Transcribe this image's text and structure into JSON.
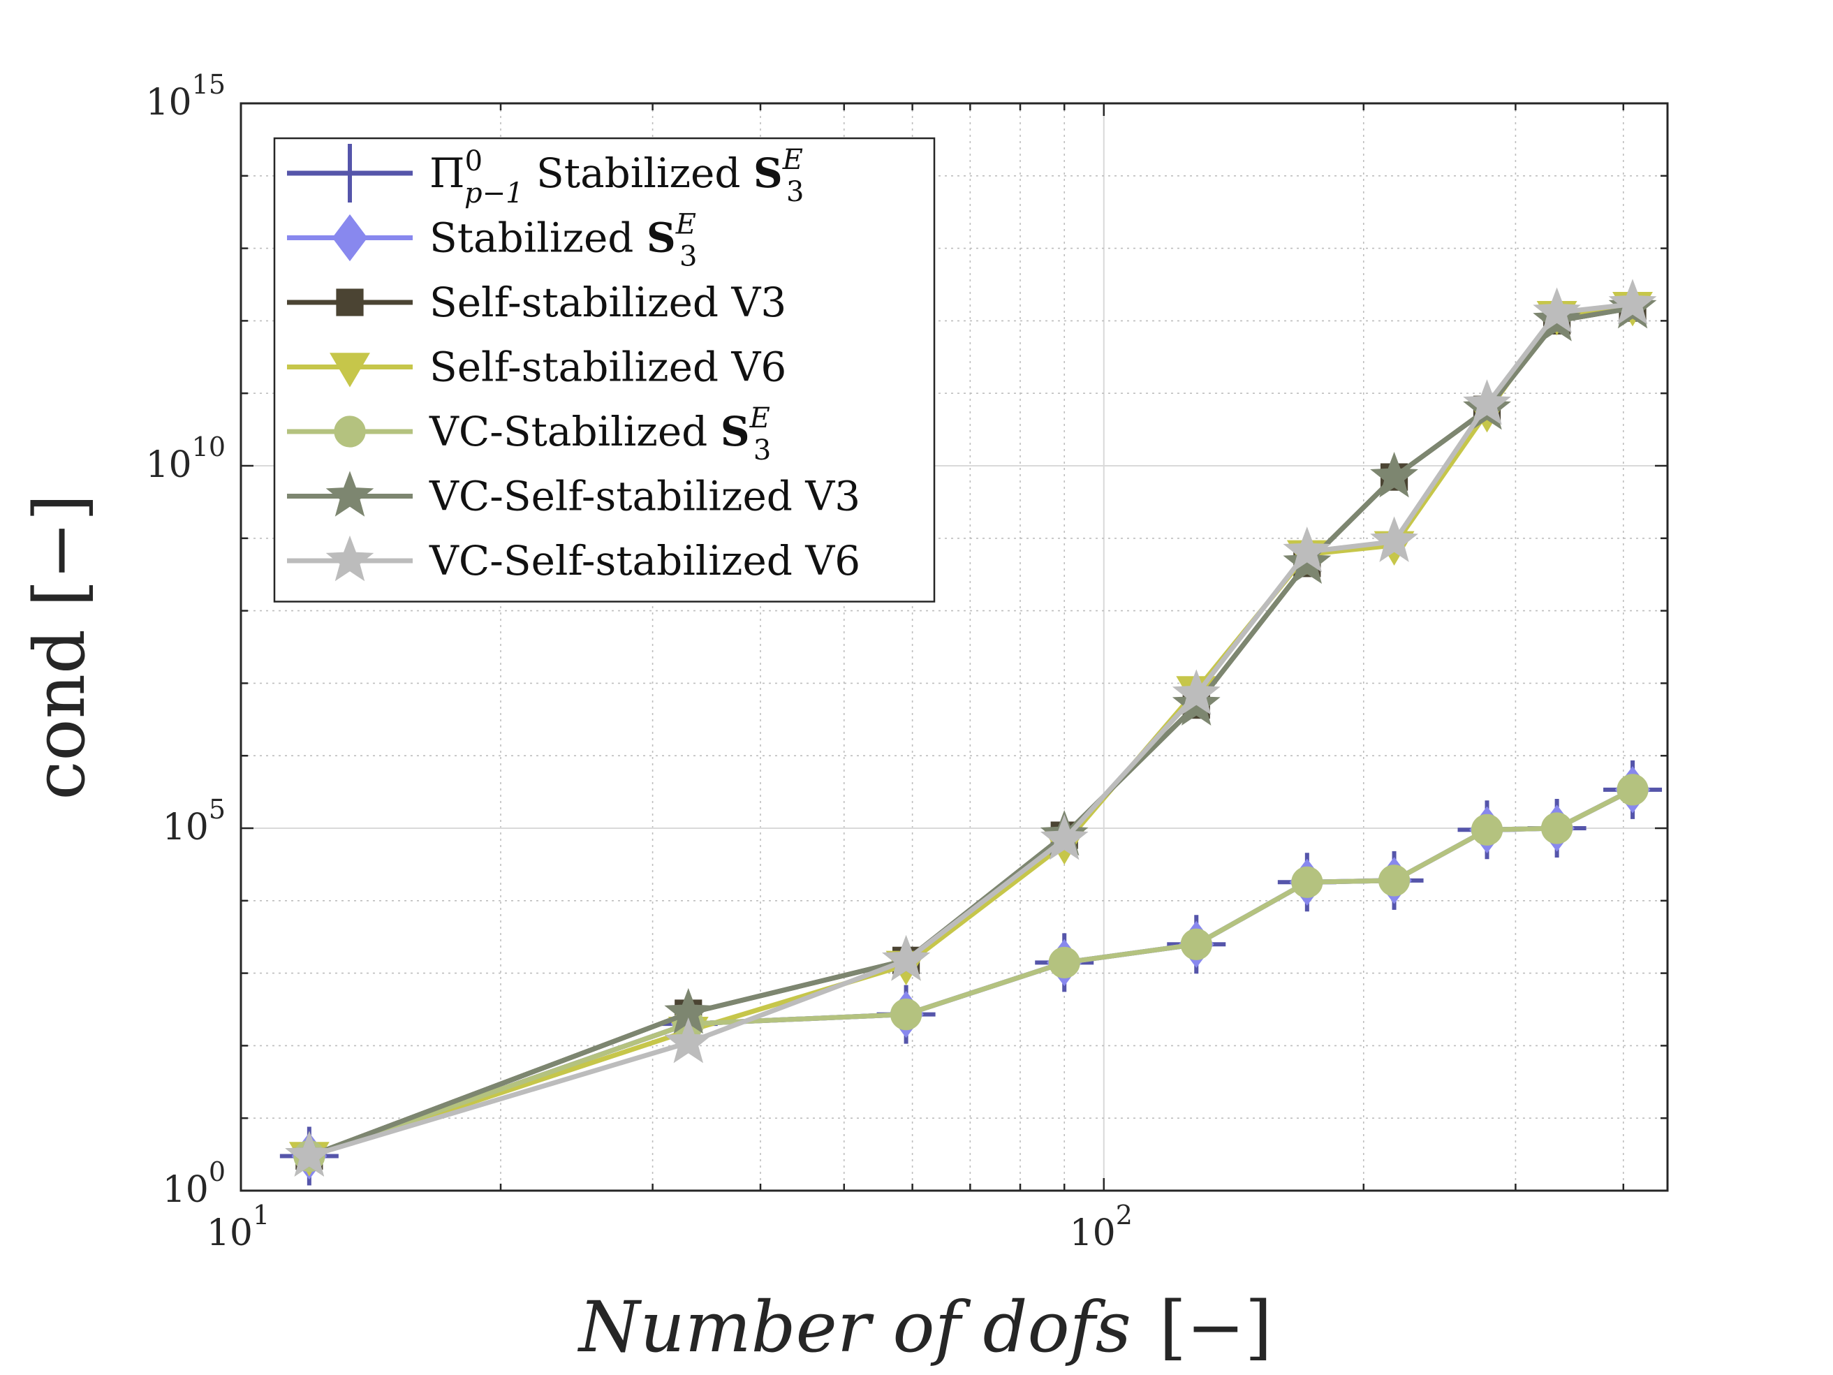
{
  "chart_data": {
    "type": "line",
    "x_scale": "log",
    "y_scale": "log",
    "xlim": [
      10,
      450
    ],
    "ylim": [
      1,
      1000000000000000.0
    ],
    "grid": true,
    "minor_grid": true,
    "legend_position": "top-left",
    "xlabel": "Number of dofs",
    "xlabel_unit": "[−]",
    "ylabel": "cond",
    "ylabel_unit": "[−]",
    "x_ticks": [
      {
        "base": "10",
        "exp": "1"
      },
      {
        "base": "10",
        "exp": "2"
      }
    ],
    "y_ticks": [
      {
        "value": 1,
        "base": "10",
        "exp": "0"
      },
      {
        "value": 100000,
        "base": "10",
        "exp": "5"
      },
      {
        "value": 10000000000,
        "base": "10",
        "exp": "10"
      },
      {
        "value": 1000000000000000,
        "base": "10",
        "exp": "15"
      }
    ],
    "series": [
      {
        "name": "Π⁰ₚ₋₁ Stabilized S₃ᴱ",
        "legend": {
          "main": "Π",
          "sup": "0",
          "sub": "p−1",
          "rest": " Stabilized ",
          "bold": "S",
          "bsub": "3",
          "bsup": "E"
        },
        "color": "#5555aa",
        "marker": "plus",
        "x": [
          12,
          33,
          59,
          90,
          128,
          172,
          217,
          278,
          335,
          410
        ],
        "y": [
          3,
          200,
          270,
          1400,
          2500,
          18000,
          19000,
          95000,
          100000,
          340000
        ]
      },
      {
        "name": "Stabilized S₃ᴱ",
        "legend": {
          "main": "",
          "sup": "",
          "sub": "",
          "rest": "Stabilized ",
          "bold": "S",
          "bsub": "3",
          "bsup": "E"
        },
        "color": "#8888ee",
        "marker": "diamond",
        "x": [
          12,
          33,
          59,
          90,
          128,
          172,
          217,
          278,
          335,
          410
        ],
        "y": [
          3,
          200,
          270,
          1400,
          2500,
          18000,
          19000,
          95000,
          100000,
          340000
        ]
      },
      {
        "name": "Self-stabilized V3",
        "legend": {
          "main": "",
          "sup": "",
          "sub": "",
          "rest": "Self-stabilized V3",
          "bold": "",
          "bsub": "",
          "bsup": ""
        },
        "color": "#4b4433",
        "marker": "square",
        "x": [
          12,
          33,
          59,
          90,
          128,
          172,
          217,
          278,
          335,
          410
        ],
        "y": [
          3,
          280,
          1500,
          80000,
          5000000,
          450000000,
          7000000000,
          60000000000,
          1000000000000,
          1500000000000
        ]
      },
      {
        "name": "Self-stabilized V6",
        "legend": {
          "main": "",
          "sup": "",
          "sub": "",
          "rest": "Self-stabilized V6",
          "bold": "",
          "bsub": "",
          "bsup": ""
        },
        "color": "#c6c64a",
        "marker": "triangle-down",
        "x": [
          12,
          33,
          59,
          90,
          128,
          172,
          217,
          278,
          335,
          410
        ],
        "y": [
          3,
          160,
          1300,
          60000,
          8000000,
          600000000,
          800000000,
          55000000000,
          1200000000000,
          1600000000000
        ]
      },
      {
        "name": "VC-Stabilized S₃ᴱ",
        "legend": {
          "main": "",
          "sup": "",
          "sub": "",
          "rest": "VC-Stabilized ",
          "bold": "S",
          "bsub": "3",
          "bsup": "E"
        },
        "color": "#b4c27f",
        "marker": "circle",
        "x": [
          12,
          33,
          59,
          90,
          128,
          172,
          217,
          278,
          335,
          410
        ],
        "y": [
          3,
          200,
          270,
          1400,
          2500,
          18000,
          19000,
          95000,
          100000,
          340000
        ]
      },
      {
        "name": "VC-Self-stabilized V3",
        "legend": {
          "main": "",
          "sup": "",
          "sub": "",
          "rest": "VC-Self-stabilized V3",
          "bold": "",
          "bsub": "",
          "bsup": ""
        },
        "color": "#7d8670",
        "marker": "star",
        "x": [
          12,
          33,
          59,
          90,
          128,
          172,
          217,
          278,
          335,
          410
        ],
        "y": [
          3,
          280,
          1500,
          80000,
          5000000,
          450000000,
          7000000000,
          60000000000,
          1000000000000,
          1500000000000
        ]
      },
      {
        "name": "VC-Self-stabilized V6",
        "legend": {
          "main": "",
          "sup": "",
          "sub": "",
          "rest": "VC-Self-stabilized V6",
          "bold": "",
          "bsub": "",
          "bsup": ""
        },
        "color": "#bcbcbc",
        "marker": "star",
        "x": [
          12,
          33,
          59,
          90,
          128,
          172,
          217,
          278,
          335,
          410
        ],
        "y": [
          3,
          110,
          1500,
          70000,
          7000000,
          650000000,
          900000000,
          70000000000,
          1300000000000,
          1700000000000
        ]
      }
    ]
  }
}
